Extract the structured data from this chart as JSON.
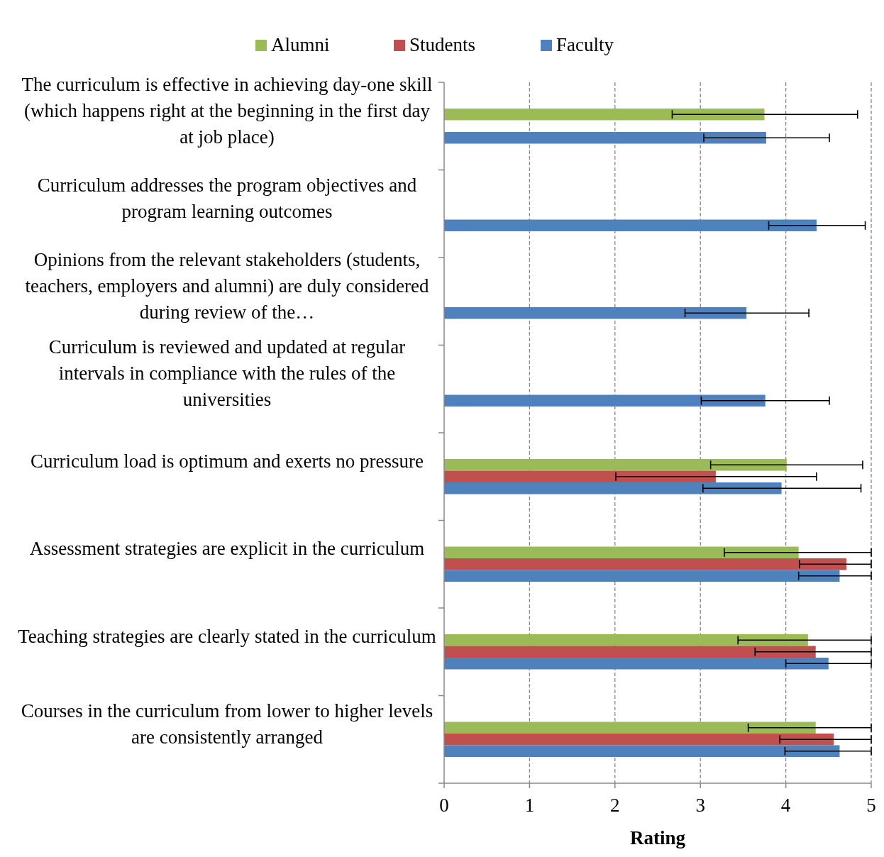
{
  "chart_data": {
    "type": "bar",
    "orientation": "horizontal",
    "xlabel": "Rating",
    "categories": [
      "The curriculum is effective in achieving day-one skill (which happens right at the beginning in the first day at job place)",
      "Curriculum addresses the program objectives and program learning outcomes",
      "Opinions from the relevant stakeholders (students, teachers, employers and alumni) are duly considered during review of the…",
      "Curriculum is reviewed and updated at regular intervals in compliance with the rules of the universities",
      "Curriculum load is optimum and exerts no pressure",
      "Assessment strategies are explicit in the curriculum",
      "Teaching strategies are clearly stated in the curriculum",
      "Courses in the curriculum from lower to higher levels are consistently arranged"
    ],
    "series": [
      {
        "name": "Alumni",
        "color": "#9bbb59",
        "values": [
          3.75,
          null,
          null,
          null,
          4.01,
          4.15,
          4.26,
          4.35
        ],
        "errors": [
          [
            2.67,
            4.84
          ],
          null,
          null,
          null,
          [
            3.12,
            4.9
          ],
          [
            3.28,
            5
          ],
          [
            3.44,
            5
          ],
          [
            3.56,
            5
          ]
        ]
      },
      {
        "name": "Students",
        "color": "#c0504d",
        "values": [
          null,
          null,
          null,
          null,
          3.18,
          4.71,
          4.35,
          4.56
        ],
        "errors": [
          null,
          null,
          null,
          null,
          [
            2.01,
            4.36
          ],
          [
            4.16,
            5
          ],
          [
            3.64,
            5
          ],
          [
            3.93,
            5
          ]
        ]
      },
      {
        "name": "Faculty",
        "color": "#4f81bd",
        "values": [
          3.77,
          4.36,
          3.54,
          3.76,
          3.95,
          4.63,
          4.5,
          4.63
        ],
        "errors": [
          [
            3.04,
            4.51
          ],
          [
            3.8,
            4.93
          ],
          [
            2.82,
            4.27
          ],
          [
            3.01,
            4.51
          ],
          [
            3.03,
            4.88
          ],
          [
            4.15,
            5
          ],
          [
            4.0,
            5
          ],
          [
            3.99,
            5
          ]
        ]
      }
    ],
    "xlim": [
      0,
      5
    ],
    "xticks": [
      0,
      1,
      2,
      3,
      4,
      5
    ],
    "grid": "x",
    "legend": "top"
  }
}
